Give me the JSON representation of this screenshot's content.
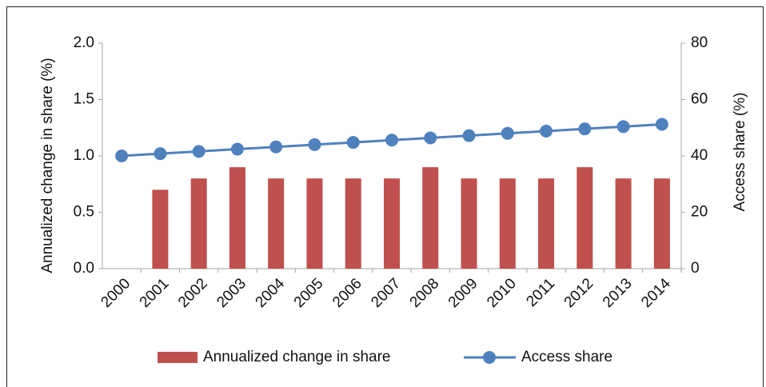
{
  "chart_data": {
    "type": "bar+line",
    "categories": [
      "2000",
      "2001",
      "2002",
      "2003",
      "2004",
      "2005",
      "2006",
      "2007",
      "2008",
      "2009",
      "2010",
      "2011",
      "2012",
      "2013",
      "2014"
    ],
    "series": [
      {
        "name": "Annualized change in share",
        "type": "bar",
        "color": "#c0504d",
        "axis": "y",
        "values": [
          null,
          0.7,
          0.8,
          0.9,
          0.8,
          0.8,
          0.8,
          0.8,
          0.9,
          0.8,
          0.8,
          0.8,
          0.9,
          0.8,
          0.8
        ]
      },
      {
        "name": "Access share",
        "type": "line",
        "color": "#4f81bd",
        "axis": "y2",
        "values": [
          40.0,
          40.8,
          41.6,
          42.4,
          43.2,
          44.0,
          44.8,
          45.6,
          46.4,
          47.2,
          48.0,
          48.8,
          49.6,
          50.4,
          51.2
        ]
      }
    ],
    "ylabel": "Annualized change in share (%)",
    "y2label": "Access share (%)",
    "ylim": [
      0,
      2
    ],
    "yticks": [
      {
        "value": 0,
        "label": "0.0"
      },
      {
        "value": 0.5,
        "label": "0.5"
      },
      {
        "value": 1,
        "label": "1.0"
      },
      {
        "value": 1.5,
        "label": "1.5"
      },
      {
        "value": 2,
        "label": "2.0"
      }
    ],
    "y2lim": [
      0,
      80
    ],
    "y2ticks": [
      0,
      20,
      40,
      60,
      80
    ],
    "legend": "bottom"
  }
}
